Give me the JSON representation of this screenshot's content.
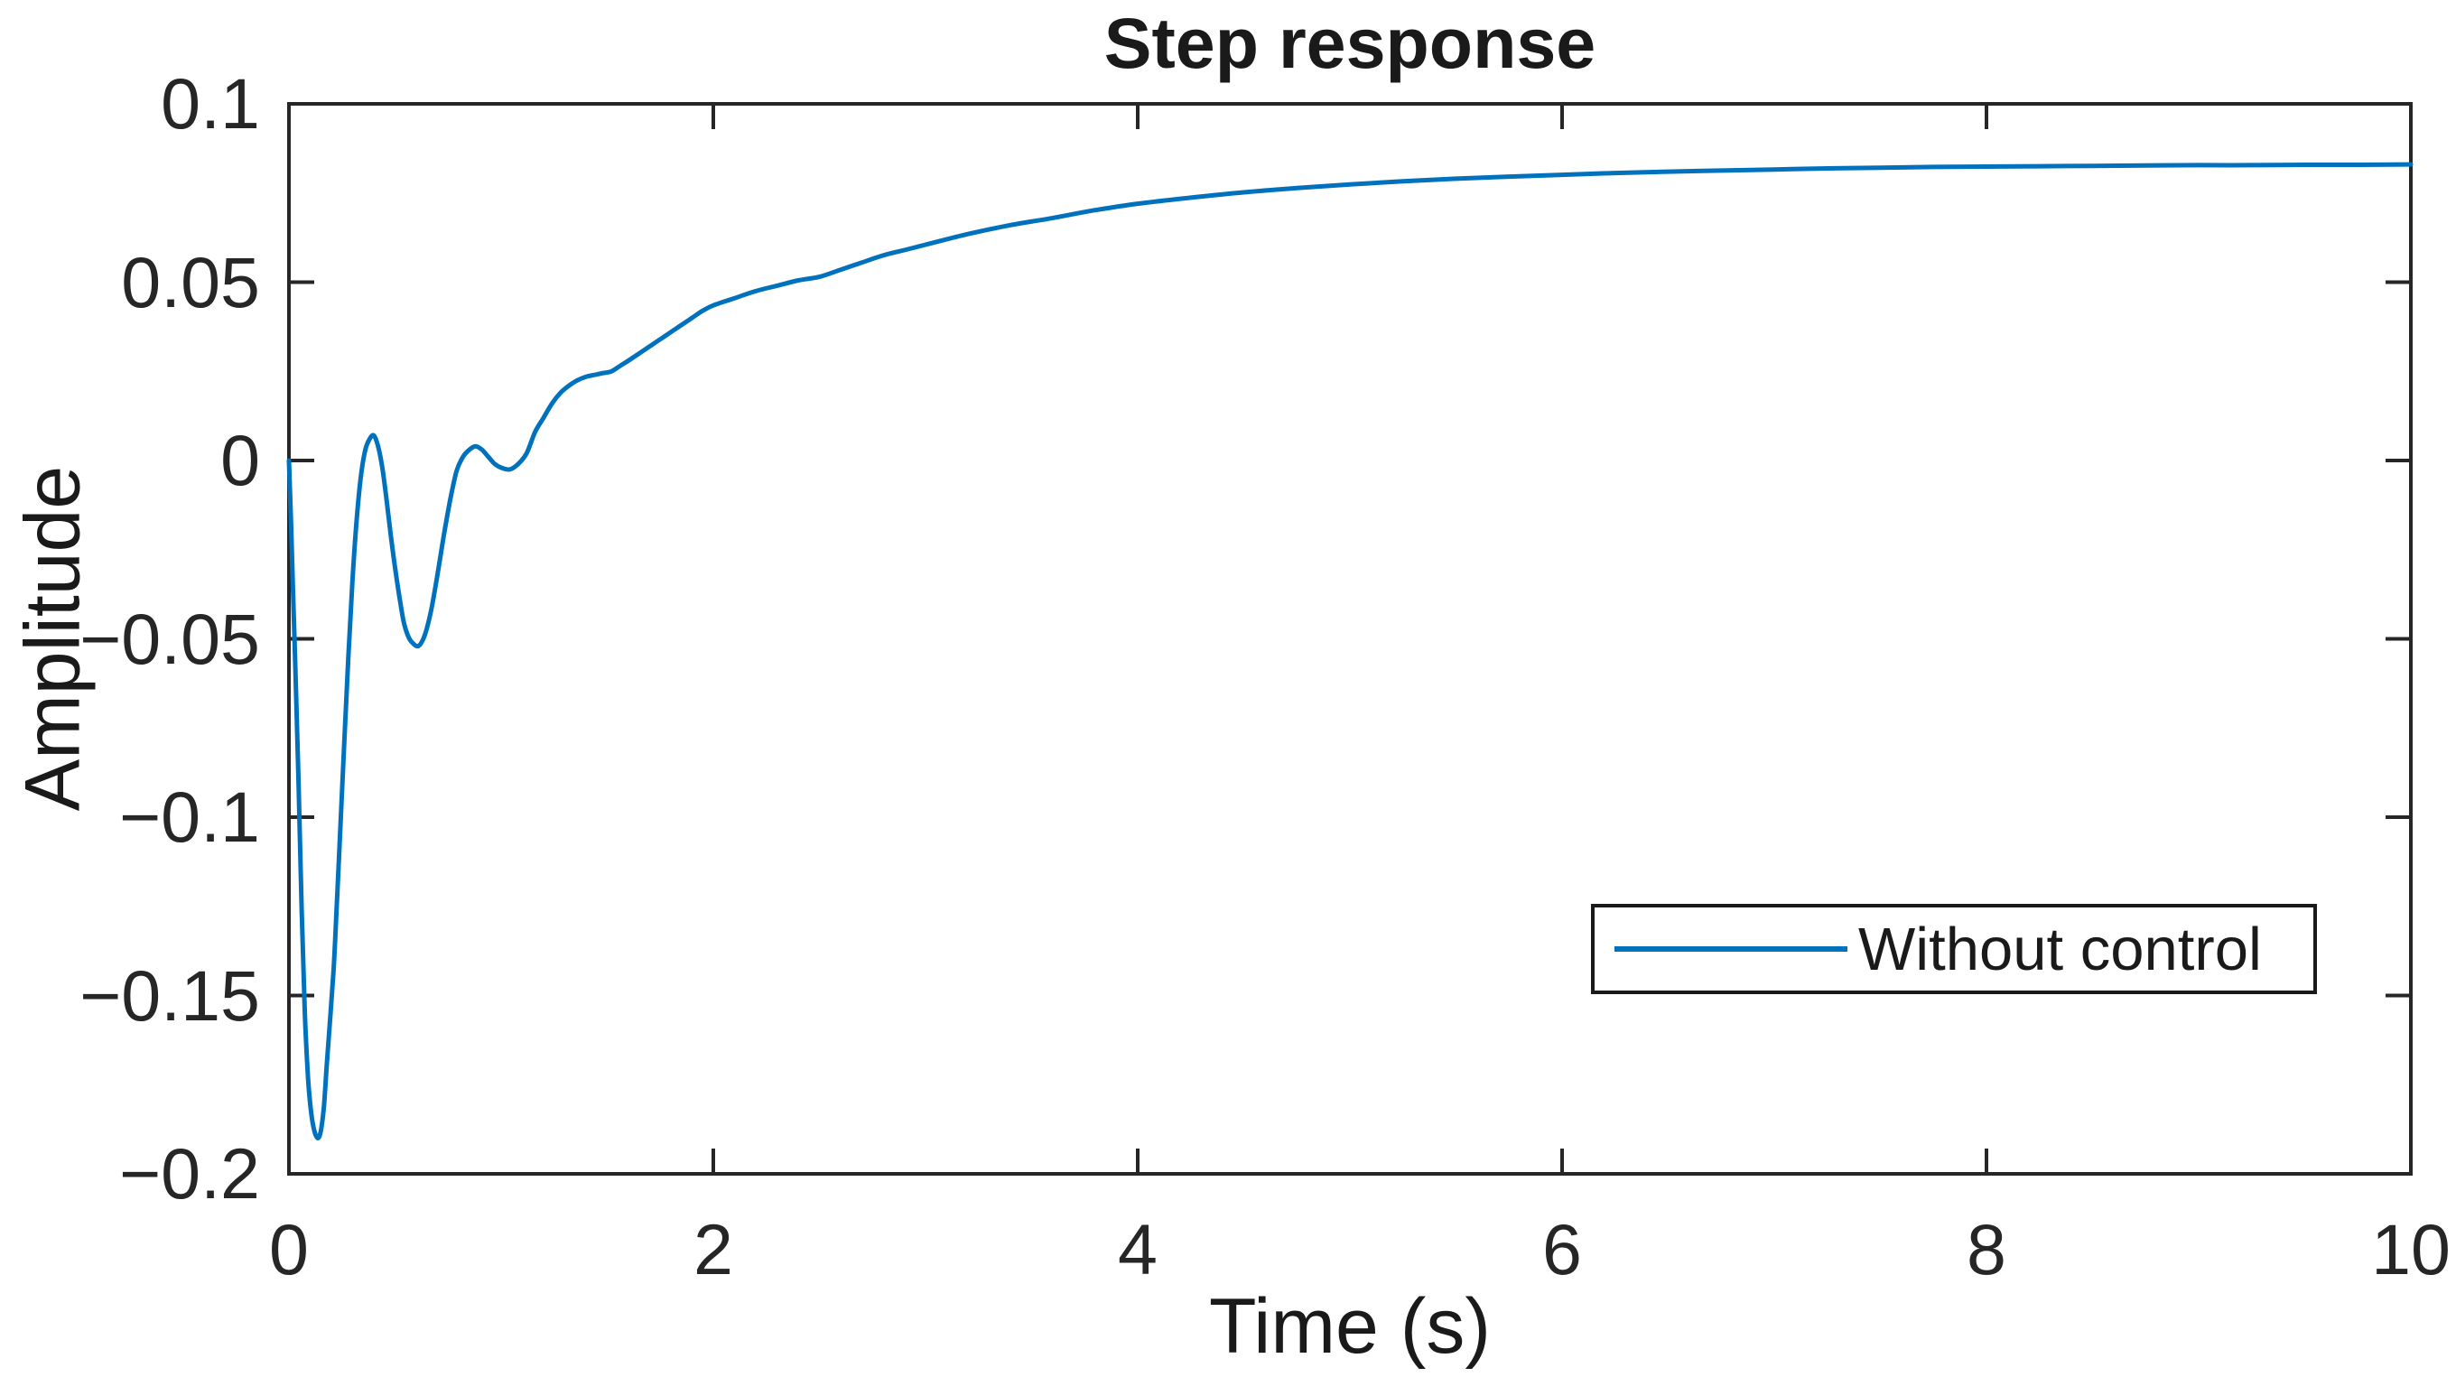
{
  "figure": {
    "background": "#ffffff"
  },
  "colors": {
    "line": "#0072BD",
    "axis": "#262626",
    "text": "#1a1a1a"
  },
  "chart_data": {
    "type": "line",
    "title": "Step response",
    "xlabel": "Time (s)",
    "ylabel": "Amplitude",
    "xlim": [
      0,
      10
    ],
    "ylim": [
      -0.2,
      0.1
    ],
    "grid": false,
    "x_ticks": [
      0,
      2,
      4,
      6,
      8,
      10
    ],
    "x_tick_labels": [
      "0",
      "2",
      "4",
      "6",
      "8",
      "10"
    ],
    "y_ticks": [
      0.1,
      0.05,
      0,
      -0.05,
      -0.1,
      -0.15,
      -0.2
    ],
    "y_tick_labels": [
      "0.1",
      "0.05",
      "0",
      "−0.05",
      "−0.1",
      "−0.15",
      "−0.2"
    ],
    "legend": {
      "position": "south-east-inside",
      "entries": [
        {
          "label": "Without control",
          "color": "#0072BD"
        }
      ]
    },
    "series": [
      {
        "name": "Without control",
        "color": "#0072BD",
        "line_width": 5,
        "points": [
          [
            0,
            0
          ],
          [
            0.01,
            -0.018
          ],
          [
            0.02,
            -0.038
          ],
          [
            0.03,
            -0.058
          ],
          [
            0.045,
            -0.09
          ],
          [
            0.06,
            -0.126
          ],
          [
            0.075,
            -0.155
          ],
          [
            0.09,
            -0.173
          ],
          [
            0.105,
            -0.183
          ],
          [
            0.12,
            -0.188
          ],
          [
            0.136,
            -0.19
          ],
          [
            0.15,
            -0.188
          ],
          [
            0.165,
            -0.181
          ],
          [
            0.18,
            -0.168
          ],
          [
            0.21,
            -0.143
          ],
          [
            0.225,
            -0.125
          ],
          [
            0.24,
            -0.106
          ],
          [
            0.26,
            -0.08
          ],
          [
            0.28,
            -0.055
          ],
          [
            0.3,
            -0.033
          ],
          [
            0.32,
            -0.016
          ],
          [
            0.34,
            -0.004
          ],
          [
            0.36,
            0.003
          ],
          [
            0.38,
            0.006
          ],
          [
            0.4,
            0.007
          ],
          [
            0.42,
            0.004
          ],
          [
            0.44,
            -0.002
          ],
          [
            0.46,
            -0.011
          ],
          [
            0.48,
            -0.021
          ],
          [
            0.5,
            -0.03
          ],
          [
            0.52,
            -0.038
          ],
          [
            0.54,
            -0.045
          ],
          [
            0.56,
            -0.049
          ],
          [
            0.58,
            -0.051
          ],
          [
            0.61,
            -0.052
          ],
          [
            0.64,
            -0.049
          ],
          [
            0.67,
            -0.042
          ],
          [
            0.7,
            -0.032
          ],
          [
            0.73,
            -0.021
          ],
          [
            0.76,
            -0.011
          ],
          [
            0.79,
            -0.003
          ],
          [
            0.82,
            0.001
          ],
          [
            0.85,
            0.003
          ],
          [
            0.88,
            0.004
          ],
          [
            0.91,
            0.003
          ],
          [
            0.94,
            0.001
          ],
          [
            0.97,
            -0.001
          ],
          [
            1,
            -0.002
          ],
          [
            1.04,
            -0.0025
          ],
          [
            1.08,
            -0.001
          ],
          [
            1.12,
            0.002
          ],
          [
            1.16,
            0.008
          ],
          [
            1.2,
            0.012
          ],
          [
            1.24,
            0.016
          ],
          [
            1.28,
            0.019
          ],
          [
            1.32,
            0.021
          ],
          [
            1.36,
            0.0225
          ],
          [
            1.4,
            0.0235
          ],
          [
            1.44,
            0.024
          ],
          [
            1.48,
            0.0245
          ],
          [
            1.52,
            0.025
          ],
          [
            1.56,
            0.0265
          ],
          [
            1.6,
            0.028
          ],
          [
            1.65,
            0.03
          ],
          [
            1.7,
            0.032
          ],
          [
            1.75,
            0.034
          ],
          [
            1.8,
            0.036
          ],
          [
            1.85,
            0.038
          ],
          [
            1.9,
            0.04
          ],
          [
            1.95,
            0.042
          ],
          [
            2,
            0.0435
          ],
          [
            2.1,
            0.0455
          ],
          [
            2.2,
            0.0475
          ],
          [
            2.3,
            0.049
          ],
          [
            2.4,
            0.0505
          ],
          [
            2.5,
            0.0515
          ],
          [
            2.6,
            0.0535
          ],
          [
            2.7,
            0.0555
          ],
          [
            2.8,
            0.0575
          ],
          [
            2.9,
            0.059
          ],
          [
            3,
            0.0605
          ],
          [
            3.2,
            0.0635
          ],
          [
            3.4,
            0.066
          ],
          [
            3.6,
            0.068
          ],
          [
            3.8,
            0.0702
          ],
          [
            4,
            0.072
          ],
          [
            4.25,
            0.0737
          ],
          [
            4.5,
            0.0752
          ],
          [
            4.75,
            0.0764
          ],
          [
            5,
            0.0774
          ],
          [
            5.25,
            0.0783
          ],
          [
            5.5,
            0.079
          ],
          [
            5.75,
            0.0796
          ],
          [
            6,
            0.0801
          ],
          [
            6.25,
            0.0806
          ],
          [
            6.5,
            0.081
          ],
          [
            6.75,
            0.0813
          ],
          [
            7,
            0.0816
          ],
          [
            7.25,
            0.0819
          ],
          [
            7.5,
            0.0821
          ],
          [
            7.75,
            0.0823
          ],
          [
            8,
            0.0824
          ],
          [
            8.25,
            0.0825
          ],
          [
            8.5,
            0.0826
          ],
          [
            8.75,
            0.0827
          ],
          [
            9,
            0.0828
          ],
          [
            9.25,
            0.0828
          ],
          [
            9.5,
            0.0829
          ],
          [
            9.75,
            0.0829
          ],
          [
            10,
            0.083
          ]
        ]
      }
    ]
  }
}
